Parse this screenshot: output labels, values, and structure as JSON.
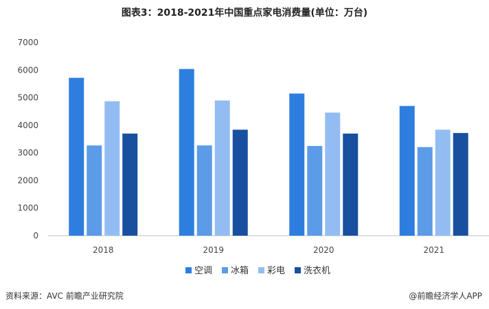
{
  "chart_data": {
    "type": "bar",
    "title": "图表3：2018-2021年中国重点家电消费量(单位：万台)",
    "categories": [
      "2018",
      "2019",
      "2020",
      "2021"
    ],
    "series": [
      {
        "name": "空调",
        "color": "#2e7ee0",
        "values": [
          5720,
          6040,
          5150,
          4700
        ]
      },
      {
        "name": "冰箱",
        "color": "#5b9be8",
        "values": [
          3270,
          3270,
          3250,
          3210
        ]
      },
      {
        "name": "彩电",
        "color": "#93bdf2",
        "values": [
          4870,
          4900,
          4460,
          3840
        ]
      },
      {
        "name": "洗衣机",
        "color": "#184f9e",
        "values": [
          3700,
          3840,
          3700,
          3720
        ]
      }
    ],
    "yticks": [
      "0",
      "1000",
      "2000",
      "3000",
      "4000",
      "5000",
      "6000",
      "7000"
    ],
    "ylim": [
      0,
      7000
    ],
    "xlabel": "",
    "ylabel": "",
    "grid": false,
    "legend": "bottom"
  },
  "footer": {
    "source": "资料来源：AVC 前瞻产业研究院",
    "credit": "@前瞻经济学人APP"
  }
}
